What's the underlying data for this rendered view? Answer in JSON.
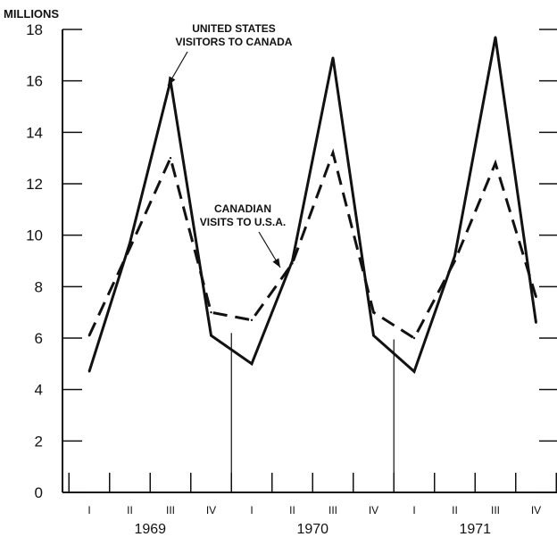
{
  "chart_data": {
    "type": "line",
    "y_unit_label": "MILLIONS",
    "ylim": [
      0,
      18
    ],
    "y_ticks": [
      "0",
      "2",
      "4",
      "6",
      "8",
      "10",
      "12",
      "14",
      "16",
      "18"
    ],
    "y_tick_values": [
      0,
      2,
      4,
      6,
      8,
      10,
      12,
      14,
      16,
      18
    ],
    "quarters": [
      "I",
      "II",
      "III",
      "IV",
      "I",
      "II",
      "III",
      "IV",
      "I",
      "II",
      "III",
      "IV"
    ],
    "years": [
      "1969",
      "1970",
      "1971"
    ],
    "series": [
      {
        "name": "UNITED STATES VISITORS TO CANADA",
        "style": "solid",
        "values": [
          4.7,
          9.7,
          16.0,
          6.1,
          5.0,
          9.0,
          16.9,
          6.1,
          4.7,
          9.2,
          17.7,
          6.6
        ]
      },
      {
        "name": "CANADIAN VISITS TO U.S.A.",
        "style": "dashed",
        "values": [
          6.1,
          9.5,
          13.0,
          7.0,
          6.7,
          8.9,
          13.2,
          7.0,
          6.0,
          9.0,
          12.8,
          7.6
        ]
      }
    ],
    "annotations": [
      {
        "lines": [
          "UNITED STATES",
          "VISITORS TO CANADA"
        ],
        "series": 0
      },
      {
        "lines": [
          "CANADIAN",
          "VISITS TO U.S.A."
        ],
        "series": 1
      }
    ],
    "grid": false,
    "colors": {
      "line": "#111111",
      "background": "#ffffff"
    }
  }
}
